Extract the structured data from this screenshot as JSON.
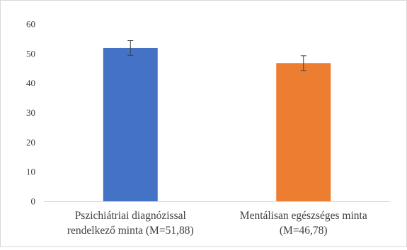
{
  "chart_data": {
    "type": "bar",
    "categories": [
      [
        "Pszichiátriai diagnózissal",
        "rendelkező minta (M=51,88)"
      ],
      [
        "Mentálisan egészséges minta",
        "(M=46,78)"
      ]
    ],
    "values": [
      51.88,
      46.78
    ],
    "error": [
      2.5,
      2.5
    ],
    "colors": [
      "#4472c4",
      "#ed7d31"
    ],
    "ylim": [
      0,
      60
    ],
    "yticks": [
      0,
      10,
      20,
      30,
      40,
      50,
      60
    ],
    "grid": false,
    "title": "",
    "xlabel": "",
    "ylabel": ""
  }
}
